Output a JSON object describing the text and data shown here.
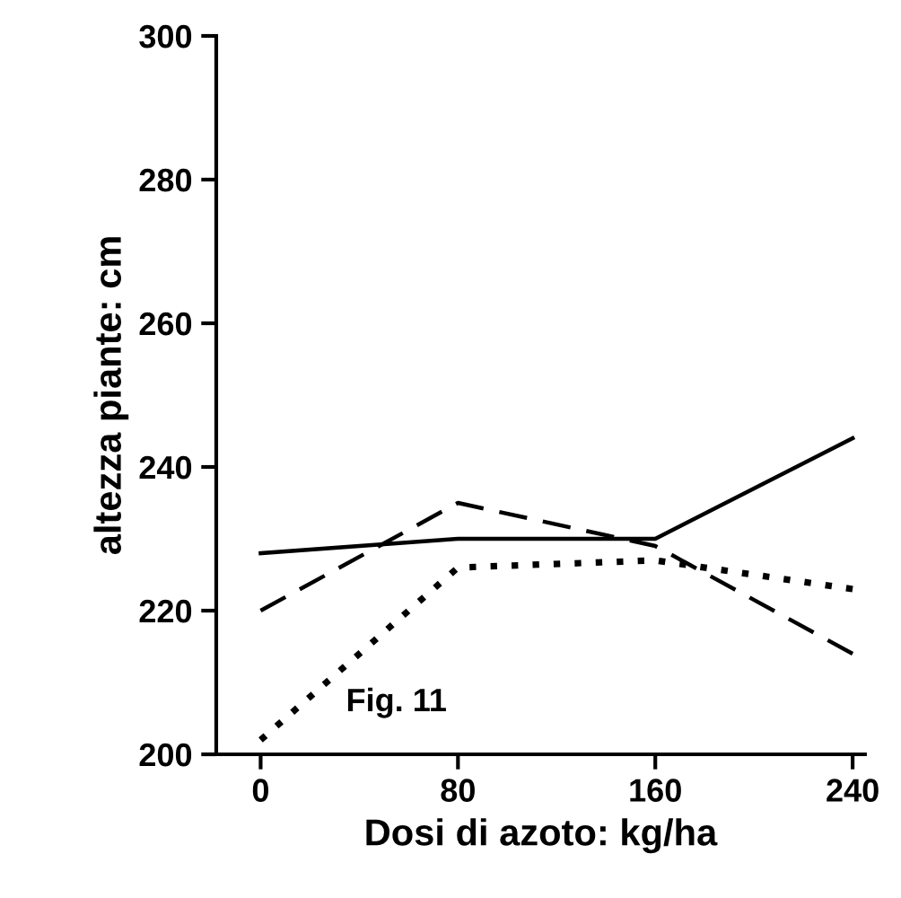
{
  "chart_data": {
    "type": "line",
    "xlabel": "Dosi di azoto: kg/ha",
    "ylabel": "altezza piante: cm",
    "x": [
      0,
      80,
      160,
      240
    ],
    "series": [
      {
        "color": "#000000",
        "line_style": "solid",
        "values": [
          228,
          230,
          230,
          244
        ]
      },
      {
        "color": "#000000",
        "line_style": "dashed",
        "values": [
          220,
          235,
          229,
          214
        ]
      },
      {
        "color": "#000000",
        "line_style": "dotted",
        "values": [
          202,
          226,
          227,
          223
        ]
      }
    ],
    "xlim": [
      -18,
      245
    ],
    "ylim": [
      200,
      300
    ],
    "xticks": [
      0,
      80,
      160,
      240
    ],
    "yticks": [
      200,
      220,
      240,
      260,
      280,
      300
    ],
    "annotations": [
      "Fig. 11"
    ],
    "grid": false,
    "legend": false,
    "marker": "none"
  }
}
